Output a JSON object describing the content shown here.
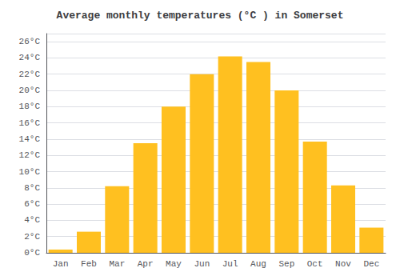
{
  "chart_data": {
    "type": "bar",
    "title": "Average monthly temperatures (°C ) in Somerset",
    "categories": [
      "Jan",
      "Feb",
      "Mar",
      "Apr",
      "May",
      "Jun",
      "Jul",
      "Aug",
      "Sep",
      "Oct",
      "Nov",
      "Dec"
    ],
    "values": [
      0.4,
      2.6,
      8.2,
      13.5,
      18.0,
      22.0,
      24.2,
      23.5,
      20.0,
      13.7,
      8.3,
      3.1
    ],
    "color": "#FFC020",
    "ylim": [
      0,
      27
    ],
    "yticks": [
      {
        "value": 0,
        "label": "0°C"
      },
      {
        "value": 2,
        "label": "2°C"
      },
      {
        "value": 4,
        "label": "4°C"
      },
      {
        "value": 6,
        "label": "6°C"
      },
      {
        "value": 8,
        "label": "8°C"
      },
      {
        "value": 10,
        "label": "10°C"
      },
      {
        "value": 12,
        "label": "12°C"
      },
      {
        "value": 14,
        "label": "14°C"
      },
      {
        "value": 16,
        "label": "16°C"
      },
      {
        "value": 18,
        "label": "18°C"
      },
      {
        "value": 20,
        "label": "20°C"
      },
      {
        "value": 22,
        "label": "22°C"
      },
      {
        "value": 24,
        "label": "24°C"
      },
      {
        "value": 26,
        "label": "26°C"
      }
    ],
    "grid": true
  }
}
